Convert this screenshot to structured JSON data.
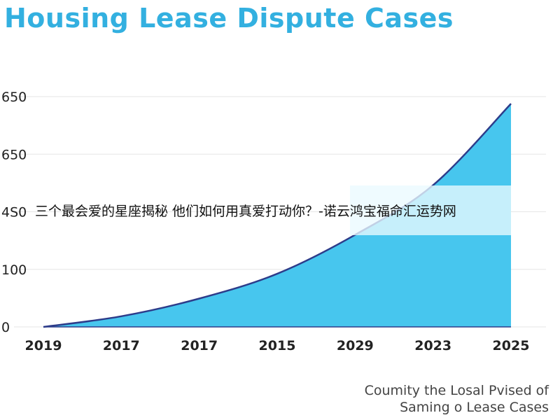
{
  "chart_data": {
    "type": "area",
    "title": "Housing Lease Dispute Cases",
    "categories": [
      "2019",
      "2017",
      "2017",
      "2015",
      "2029",
      "2023",
      "2025"
    ],
    "ytick_labels": [
      "650",
      "650",
      "4S0",
      "100",
      "0"
    ],
    "series": [
      {
        "values": [
          0,
          30,
          80,
          150,
          260,
          400,
          630
        ]
      }
    ],
    "ylim": [
      0,
      650
    ],
    "grid": true,
    "fill_color": "#47c6ee",
    "line_color": "#2d3c8a"
  },
  "overlay": {
    "text": "三个最会爱的星座揭秘 他们如何用真爱打动你？-诺云鸿宝福命汇运势网"
  },
  "caption": {
    "line1": "Coumity the Losal Pvised of",
    "line2": "Saming o Lease Cases"
  }
}
